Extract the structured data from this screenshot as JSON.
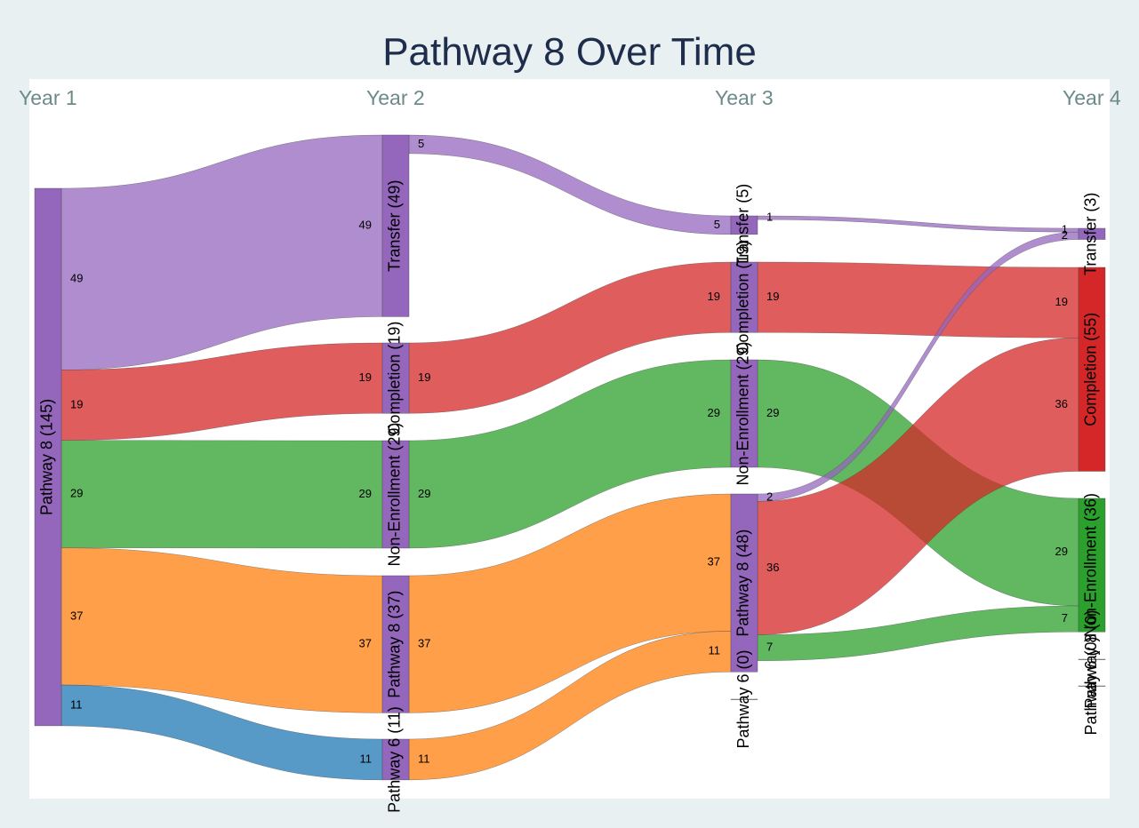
{
  "title": "Pathway 8 Over Time",
  "columns": [
    "Year 1",
    "Year 2",
    "Year 3",
    "Year 4"
  ],
  "colors": {
    "background": "#e9f0f2",
    "title": "#1f2d4d",
    "column_label": "#6d8a8a",
    "node": "#9467bd",
    "transfer": "#9467bd",
    "completion": "#d62728",
    "non_enrollment": "#2ca02c",
    "pathway8": "#ff7f0e",
    "pathway6": "#1f77b4"
  },
  "chart_data": {
    "type": "sankey",
    "title": "Pathway 8 Over Time",
    "columns": [
      "Year 1",
      "Year 2",
      "Year 3",
      "Year 4"
    ],
    "nodes": [
      {
        "id": "y1_p8",
        "label": "Pathway 8 (145)",
        "column": 0,
        "value": 145,
        "color": "node"
      },
      {
        "id": "y2_tr",
        "label": "Transfer (49)",
        "column": 1,
        "value": 49,
        "color": "node"
      },
      {
        "id": "y2_co",
        "label": "Completion (19)",
        "column": 1,
        "value": 19,
        "color": "node"
      },
      {
        "id": "y2_ne",
        "label": "Non-Enrollment (29)",
        "column": 1,
        "value": 29,
        "color": "node"
      },
      {
        "id": "y2_p8",
        "label": "Pathway 8 (37)",
        "column": 1,
        "value": 37,
        "color": "node"
      },
      {
        "id": "y2_p6",
        "label": "Pathway 6 (11)",
        "column": 1,
        "value": 11,
        "color": "node"
      },
      {
        "id": "y3_tr",
        "label": "Transfer (5)",
        "column": 2,
        "value": 5,
        "color": "node"
      },
      {
        "id": "y3_co",
        "label": "Completion (19)",
        "column": 2,
        "value": 19,
        "color": "node"
      },
      {
        "id": "y3_ne",
        "label": "Non-Enrollment (29)",
        "column": 2,
        "value": 29,
        "color": "node"
      },
      {
        "id": "y3_p8",
        "label": "Pathway 8 (48)",
        "column": 2,
        "value": 48,
        "color": "node"
      },
      {
        "id": "y3_p6",
        "label": "Pathway 6 (0)",
        "column": 2,
        "value": 0,
        "color": "node"
      },
      {
        "id": "y4_tr",
        "label": "Transfer (3)",
        "column": 3,
        "value": 3,
        "color": "node"
      },
      {
        "id": "y4_co",
        "label": "Completion (55)",
        "column": 3,
        "value": 55,
        "color": "completion"
      },
      {
        "id": "y4_ne",
        "label": "Non-Enrollment (36)",
        "column": 3,
        "value": 36,
        "color": "non_enrollment"
      },
      {
        "id": "y4_p8",
        "label": "Pathway 8 (0)",
        "column": 3,
        "value": 0,
        "color": "node"
      },
      {
        "id": "y4_p6",
        "label": "Pathway 6 (0)",
        "column": 3,
        "value": 0,
        "color": "node"
      }
    ],
    "links": [
      {
        "source": "y1_p8",
        "target": "y2_tr",
        "value": 49,
        "color": "transfer"
      },
      {
        "source": "y1_p8",
        "target": "y2_co",
        "value": 19,
        "color": "completion"
      },
      {
        "source": "y1_p8",
        "target": "y2_ne",
        "value": 29,
        "color": "non_enrollment"
      },
      {
        "source": "y1_p8",
        "target": "y2_p8",
        "value": 37,
        "color": "pathway8"
      },
      {
        "source": "y1_p8",
        "target": "y2_p6",
        "value": 11,
        "color": "pathway6"
      },
      {
        "source": "y2_tr",
        "target": "y3_tr",
        "value": 5,
        "color": "transfer"
      },
      {
        "source": "y2_co",
        "target": "y3_co",
        "value": 19,
        "color": "completion"
      },
      {
        "source": "y2_ne",
        "target": "y3_ne",
        "value": 29,
        "color": "non_enrollment"
      },
      {
        "source": "y2_p8",
        "target": "y3_p8",
        "value": 37,
        "color": "pathway8"
      },
      {
        "source": "y2_p6",
        "target": "y3_p8",
        "value": 11,
        "color": "pathway8"
      },
      {
        "source": "y3_tr",
        "target": "y4_tr",
        "value": 1,
        "color": "transfer"
      },
      {
        "source": "y3_co",
        "target": "y4_co",
        "value": 19,
        "color": "completion"
      },
      {
        "source": "y3_ne",
        "target": "y4_ne",
        "value": 29,
        "color": "non_enrollment"
      },
      {
        "source": "y3_p8",
        "target": "y4_tr",
        "value": 2,
        "color": "transfer"
      },
      {
        "source": "y3_p8",
        "target": "y4_co",
        "value": 36,
        "color": "completion"
      },
      {
        "source": "y3_p8",
        "target": "y4_ne",
        "value": 7,
        "color": "non_enrollment"
      }
    ]
  }
}
